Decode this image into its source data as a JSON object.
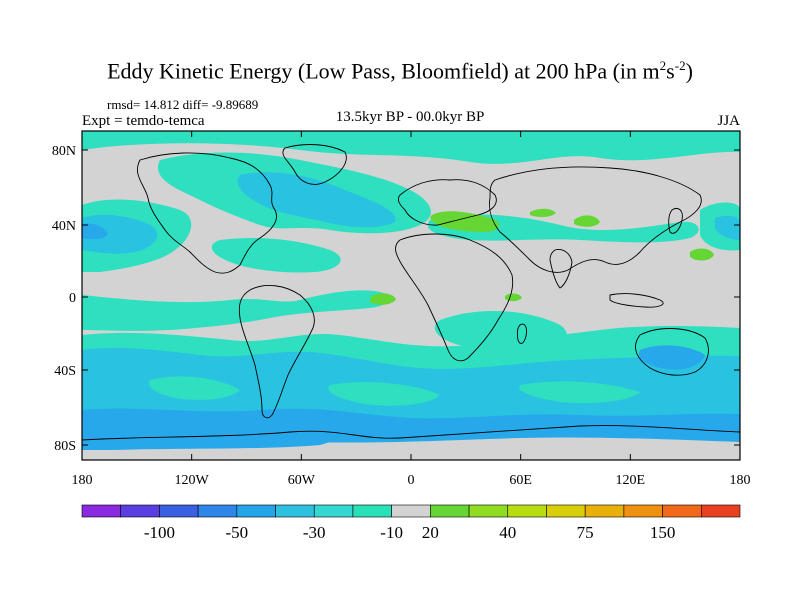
{
  "title": {
    "main": "Eddy Kinetic Energy (Low Pass, Bloomfield) at 200 hPa (in m",
    "sup1": "2",
    "s": "s",
    "sup2": "-2",
    "close": ")"
  },
  "stats": "rmsd= 14.812 diff= -9.89689",
  "expt": "Expt = temdo-temca",
  "period": "13.5kyr BP - 00.0kyr BP",
  "season": "JJA",
  "axes": {
    "lat_labels": [
      "80N",
      "40N",
      "0",
      "40S",
      "80S"
    ],
    "lon_labels": [
      "180",
      "120W",
      "60W",
      "0",
      "60E",
      "120E",
      "180"
    ]
  },
  "colorbar": {
    "colors": [
      "#8a2be2",
      "#5a3fe0",
      "#3a5fe0",
      "#2e86e8",
      "#25a6e8",
      "#2cc2e0",
      "#35d8d0",
      "#2ae0b8",
      "#d3d3d3",
      "#66d634",
      "#8fdc20",
      "#b7dc10",
      "#d8cf08",
      "#e8b008",
      "#f09010",
      "#f06818",
      "#e84020"
    ],
    "labels": [
      "-100",
      "-50",
      "-30",
      "-10",
      "20",
      "40",
      "75",
      "150"
    ]
  },
  "colors": {
    "background": "#d3d3d3",
    "light_blue": "#29c2e0",
    "teal": "#2ee0c0",
    "mid_blue": "#26a8ea",
    "deep_blue": "#2c86e8",
    "green": "#66d634",
    "coast": "#000000"
  }
}
